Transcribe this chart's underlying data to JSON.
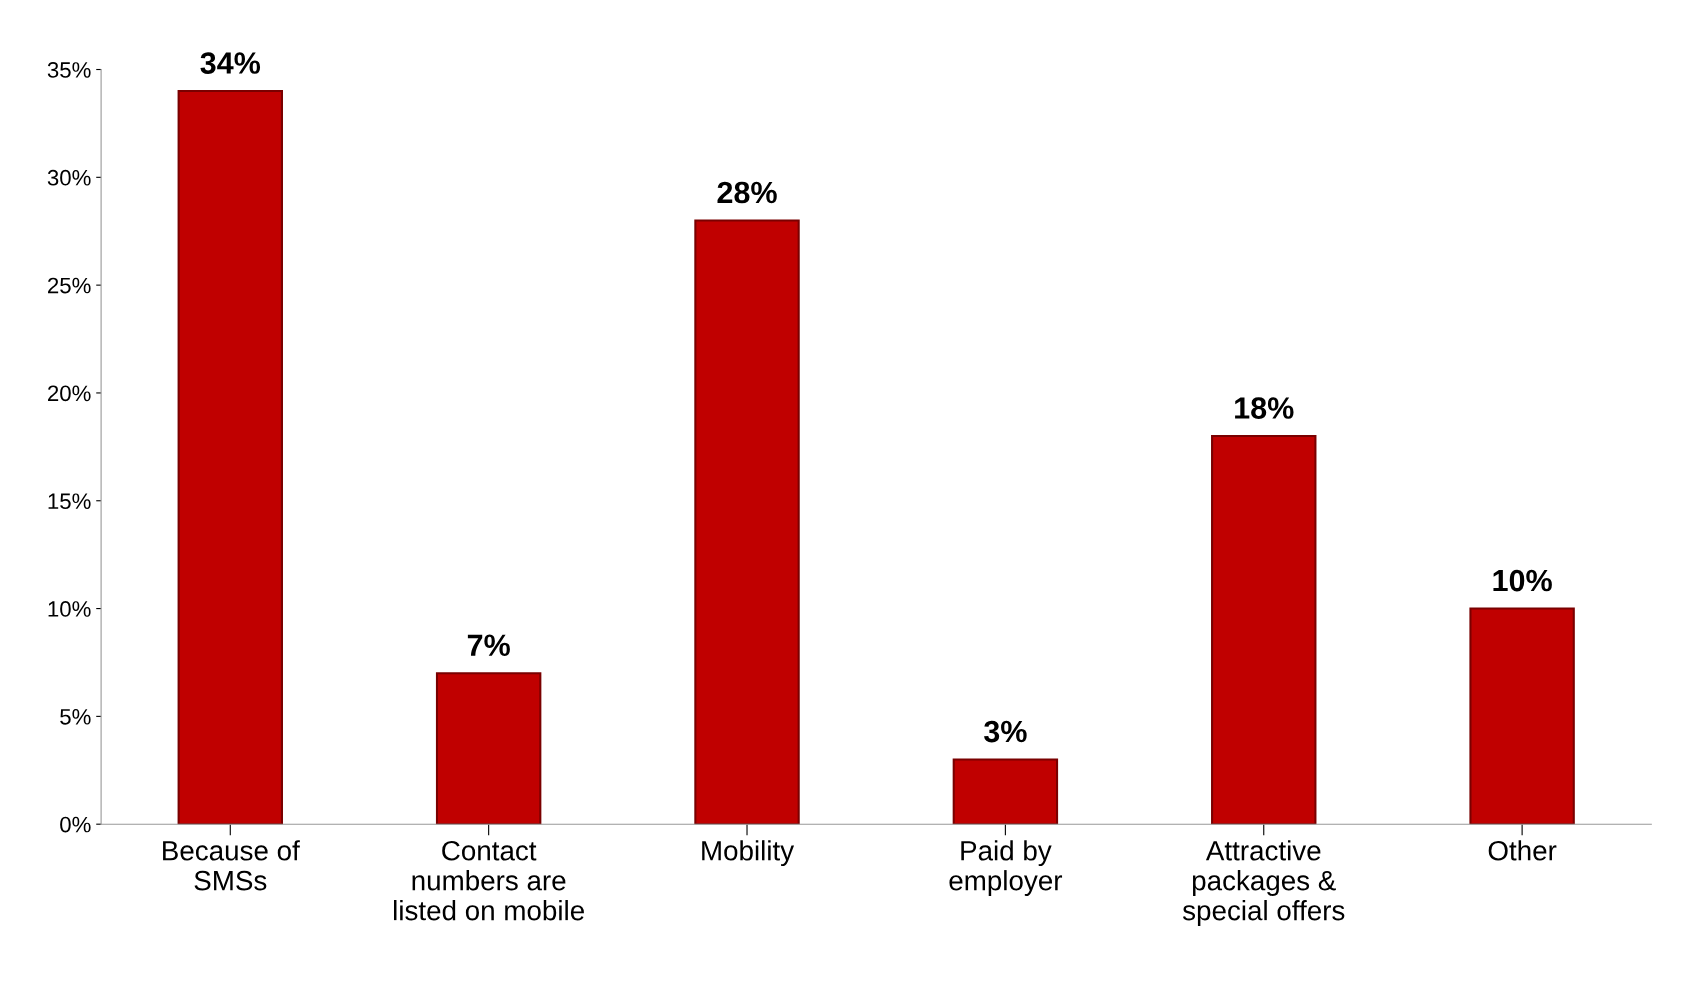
{
  "chart_data": {
    "type": "bar",
    "categories": [
      "Because of\nSMSs",
      "Contact\nnumbers are\nlisted on mobile",
      "Mobility",
      "Paid by\nemployer",
      "Attractive\npackages &\nspecial offers",
      "Other"
    ],
    "values": [
      34,
      7,
      28,
      3,
      18,
      10
    ],
    "value_labels": [
      "34%",
      "7%",
      "28%",
      "3%",
      "18%",
      "10%"
    ],
    "color": "#c00000",
    "ylim": [
      0,
      35
    ],
    "yticks": [
      {
        "value": 0,
        "label": "0%"
      },
      {
        "value": 5,
        "label": "5%"
      },
      {
        "value": 10,
        "label": "10%"
      },
      {
        "value": 15,
        "label": "15%"
      },
      {
        "value": 20,
        "label": "20%"
      },
      {
        "value": 25,
        "label": "25%"
      },
      {
        "value": 30,
        "label": "30%"
      },
      {
        "value": 35,
        "label": "35%"
      }
    ],
    "grid": false
  }
}
